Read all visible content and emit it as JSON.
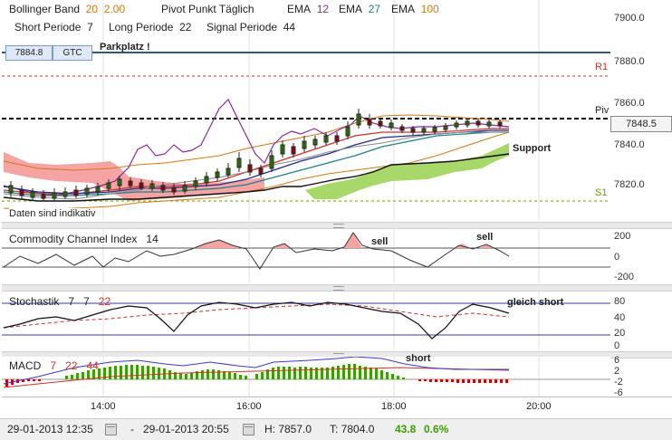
{
  "header": {
    "bollinger_label": "Bollinger Band",
    "bollinger_p1": "20",
    "bollinger_p2": "2.00",
    "pivot_label": "Pivot Punkt Täglich",
    "ema_label": "EMA",
    "ema1": "12",
    "ema2": "27",
    "ema3": "100",
    "short_label": "Short Periode",
    "short_val": "7",
    "long_label": "Long Periode",
    "long_val": "22",
    "signal_label": "Signal Periode",
    "signal_val": "44"
  },
  "order": {
    "price": "7884.8",
    "type": "GTC",
    "note": "Parkplatz !"
  },
  "main_chart": {
    "y_ticks": [
      "7900.0",
      "7880.0",
      "7860.0",
      "7848.5",
      "7840.0",
      "7820.0"
    ],
    "r1_label": "R1",
    "piv_label": "Piv",
    "s1_label": "S1",
    "support_label": "Support",
    "disclaimer": "Daten sind indikativ"
  },
  "cci": {
    "title": "Commodity Channel Index",
    "period": "14",
    "y_ticks": [
      "200",
      "0",
      "-200"
    ],
    "sell_label_1": "sell",
    "sell_label_2": "sell"
  },
  "stoch": {
    "title": "Stochastik",
    "p1": "7",
    "p2": "7",
    "p3": "22",
    "y_ticks": [
      "80",
      "40",
      "20",
      "0"
    ],
    "annotation": "gleich short"
  },
  "macd": {
    "title": "MACD",
    "p1": "7",
    "p2": "22",
    "p3": "44",
    "y_ticks": [
      "6",
      "2",
      "-2",
      "-6"
    ],
    "annotation": "short"
  },
  "x_axis": {
    "ticks": [
      "14:00",
      "16:00",
      "18:00",
      "20:00"
    ]
  },
  "status": {
    "from": "29-01-2013 12:35",
    "dash": "-",
    "to": "29-01-2013 20:55",
    "high": "H: 7857.0",
    "low": "T: 7804.0",
    "change": "43.8",
    "change_pct": "0.6%"
  },
  "colors": {
    "r1": "#c0392b",
    "s1": "#6aa000",
    "pivot": "#000000",
    "ichimoku_red": "#f5a3a3",
    "ichimoku_green": "#a8d86a",
    "positive": "#3aa000",
    "negative": "#d00000"
  }
}
